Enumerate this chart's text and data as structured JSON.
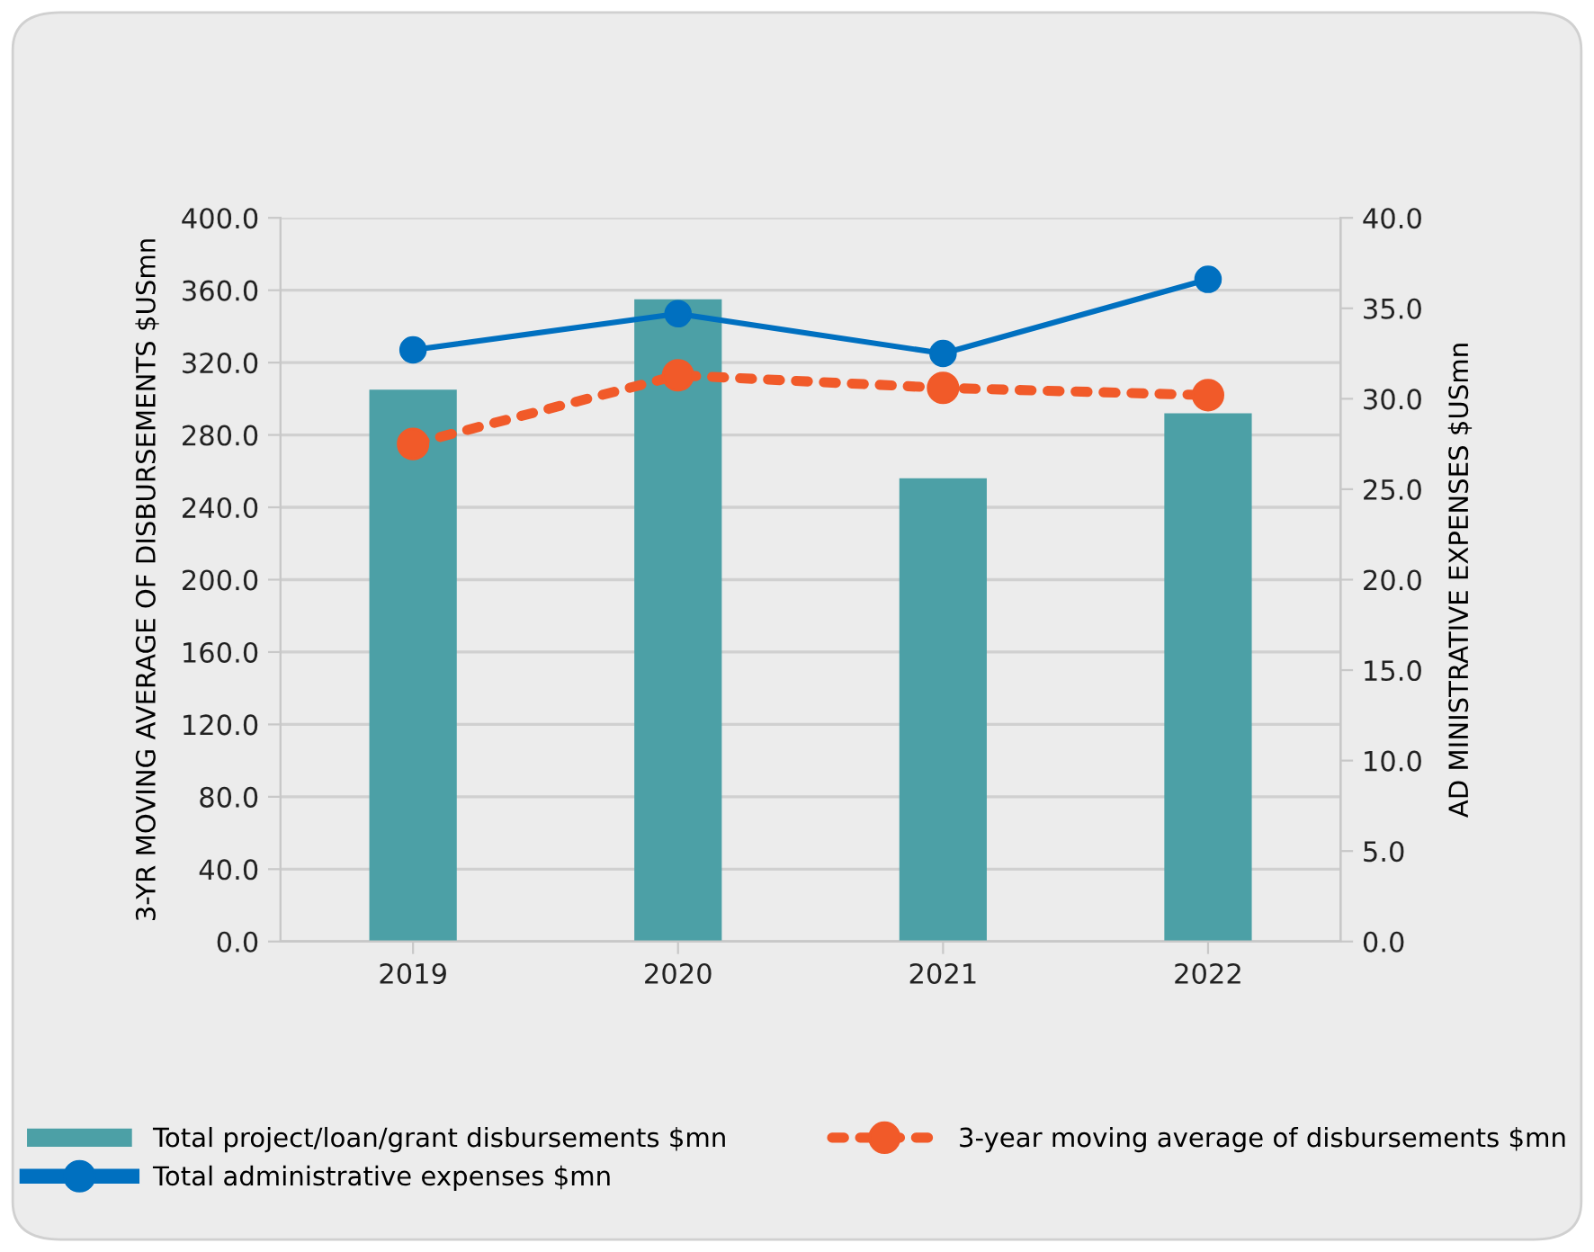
{
  "chart_data": {
    "type": "bar",
    "categories": [
      "2019",
      "2020",
      "2021",
      "2022"
    ],
    "series": [
      {
        "name": "Total project/loan/grant disbursements $mn",
        "color": "#4ca0a6",
        "values": [
          305,
          355,
          256,
          292
        ]
      },
      {
        "name": "3-year moving average of disbursements $mn",
        "type": "line",
        "color": "#f15a29",
        "values": [
          275,
          313,
          306,
          302
        ],
        "marker": "circle",
        "line_style": "dotted"
      },
      {
        "name": "Total administrative expenses $mn",
        "type": "line",
        "color": "#0070c0",
        "values": [
          32.7,
          34.7,
          32.5,
          36.6
        ],
        "axis": "y2",
        "marker": "circle",
        "line_style": "solid"
      }
    ],
    "ylabel": "3-YR MOVING AVERAGE OF DISBURSEMENTS $USmn",
    "y2label": "AD MINISTRATIVE EXPENSES $USmn",
    "ylim": [
      0,
      400
    ],
    "yticks": [
      {
        "value": 0,
        "label": "0.0"
      },
      {
        "value": 40,
        "label": "40.0"
      },
      {
        "value": 80,
        "label": "80.0"
      },
      {
        "value": 120,
        "label": "120.0"
      },
      {
        "value": 160,
        "label": "160.0"
      },
      {
        "value": 200,
        "label": "200.0"
      },
      {
        "value": 240,
        "label": "240.0"
      },
      {
        "value": 280,
        "label": "280.0"
      },
      {
        "value": 320,
        "label": "320.0"
      },
      {
        "value": 360,
        "label": "360.0"
      },
      {
        "value": 400,
        "label": "400.0"
      }
    ],
    "y2lim": [
      0,
      40
    ],
    "y2ticks": [
      {
        "value": 0,
        "label": "0.0"
      },
      {
        "value": 5,
        "label": "5.0"
      },
      {
        "value": 10,
        "label": "10.0"
      },
      {
        "value": 15,
        "label": "15.0"
      },
      {
        "value": 20,
        "label": "20.0"
      },
      {
        "value": 25,
        "label": "25.0"
      },
      {
        "value": 30,
        "label": "30.0"
      },
      {
        "value": 35,
        "label": "35.0"
      },
      {
        "value": 40,
        "label": "40.0"
      }
    ],
    "grid": "y",
    "legend": "bottom"
  }
}
